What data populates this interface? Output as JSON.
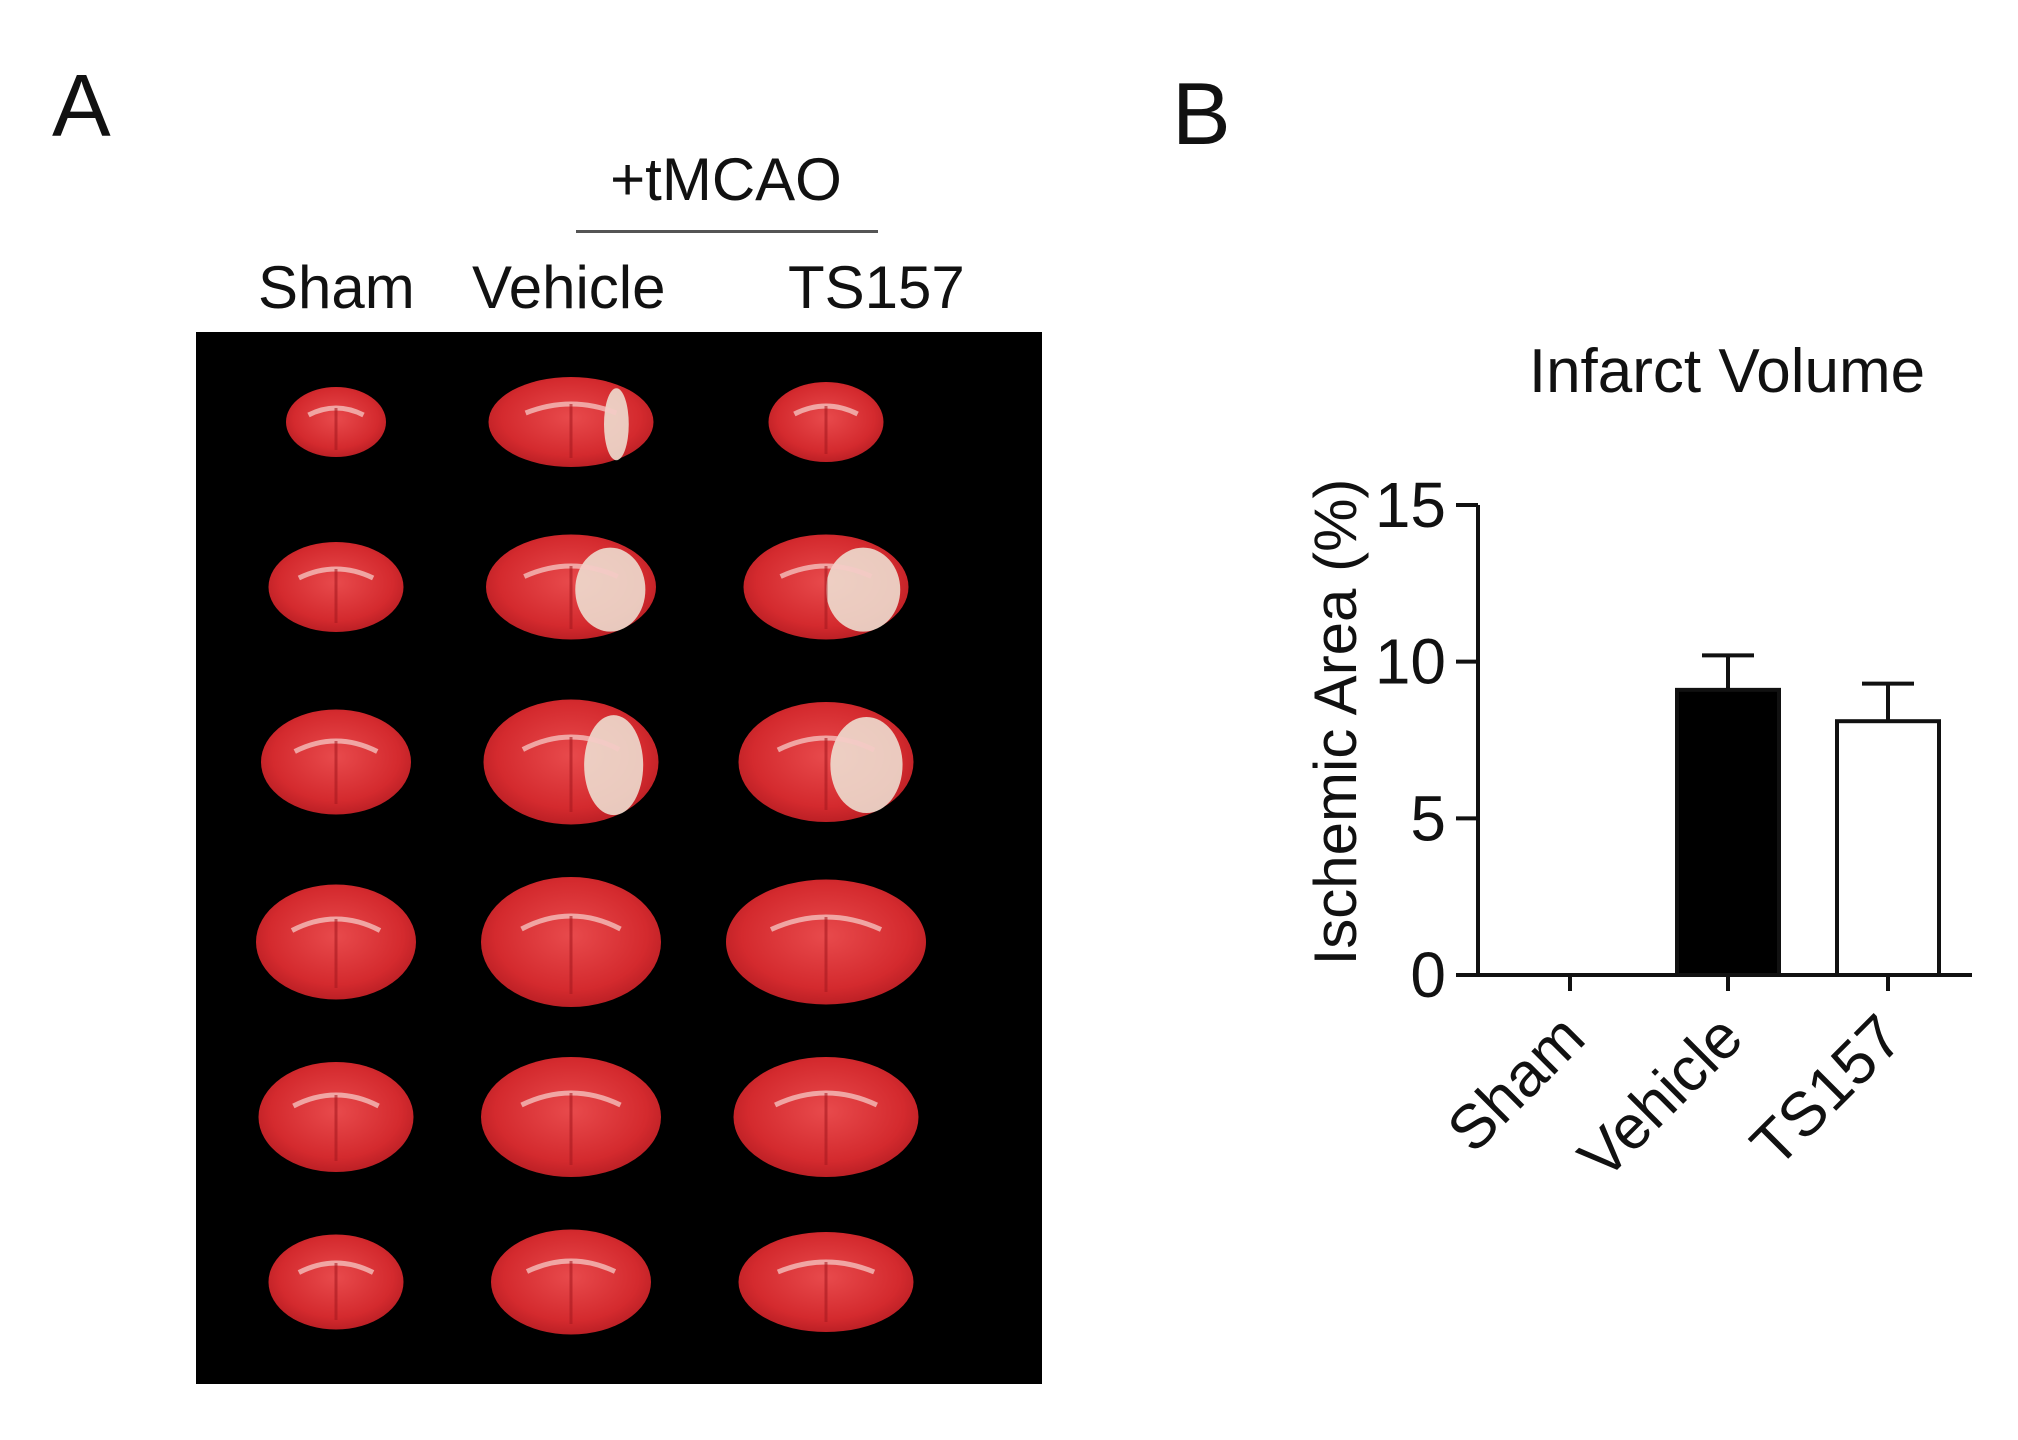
{
  "panel_a": {
    "label": "A",
    "group_label": "+tMCAO",
    "columns": [
      "Sham",
      "Vehicle",
      "TS157"
    ],
    "colors": {
      "background": "#000000",
      "tissue": "#d42a2e",
      "infarct": "#efe6d8"
    }
  },
  "panel_b": {
    "label": "B"
  },
  "chart_data": {
    "type": "bar",
    "title": "Infarct Volume",
    "xlabel": "",
    "ylabel": "Ischemic Area (%)",
    "categories": [
      "Sham",
      "Vehicle",
      "TS157"
    ],
    "values": [
      0,
      9.1,
      8.1
    ],
    "errors": [
      0,
      1.1,
      1.2
    ],
    "fills": [
      "#000000",
      "#000000",
      "#ffffff"
    ],
    "ylim": [
      0,
      15
    ],
    "yticks": [
      0,
      5,
      10,
      15
    ],
    "grid": false
  }
}
